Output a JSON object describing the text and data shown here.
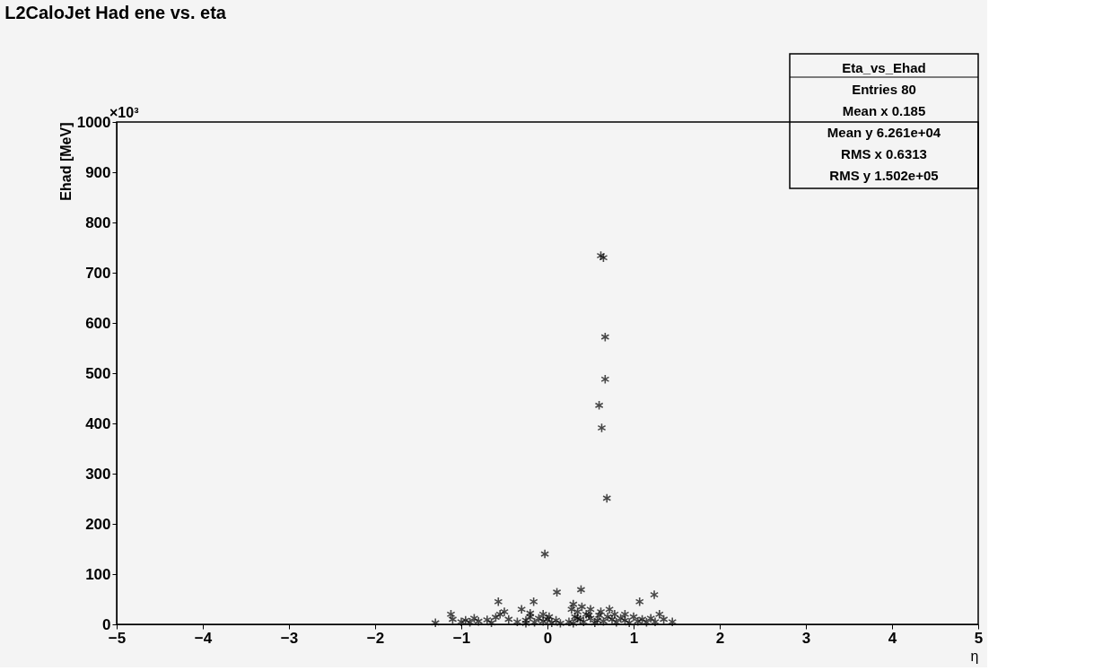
{
  "chart_data": {
    "type": "scatter",
    "title": "L2CaloJet Had ene vs. eta",
    "xlabel": "η",
    "ylabel": "Ehad [MeV]",
    "annotations": [
      "×10³",
      "Eta_vs_Ehad",
      "Entries 80",
      "Mean x 0.185",
      "Mean y 6.261e+04",
      "RMS x 0.6313",
      "RMS y 1.502e+05"
    ],
    "xlim": [
      -5,
      5
    ],
    "xticks": [
      -5,
      -4,
      -3,
      -2,
      -1,
      0,
      1,
      2,
      3,
      4,
      5
    ],
    "ylim": [
      0,
      1000
    ],
    "yticks": [
      0,
      100,
      200,
      300,
      400,
      500,
      600,
      700,
      800,
      900,
      1000
    ],
    "grid": false,
    "marker": "cross",
    "series": [
      {
        "color": "#000000",
        "x": [
          0.62,
          0.65,
          0.67,
          0.67,
          0.6,
          0.63,
          0.69,
          -0.03,
          0.11,
          0.39,
          -0.57,
          -0.16,
          1.07,
          1.24,
          -1.3,
          -1.12,
          -1.1,
          -1.0,
          -0.95,
          -0.85,
          -0.8,
          -0.7,
          -0.6,
          -0.55,
          -0.5,
          -0.45,
          -0.35,
          -0.3,
          -0.25,
          -0.2,
          -0.15,
          -0.1,
          -0.05,
          0.0,
          0.05,
          0.1,
          -0.25,
          -0.05,
          0.25,
          0.28,
          0.3,
          0.32,
          0.35,
          0.38,
          0.4,
          0.42,
          0.45,
          0.5,
          0.55,
          0.58,
          0.6,
          0.62,
          0.65,
          0.7,
          0.72,
          0.75,
          0.8,
          0.85,
          0.9,
          0.95,
          1.0,
          1.05,
          1.1,
          1.15,
          1.2,
          1.25,
          1.3,
          1.35,
          1.45,
          -0.65,
          0.15,
          0.3,
          0.5,
          0.9,
          -0.2,
          0.35,
          0.48,
          -0.9,
          0.02,
          0.78
        ],
        "values": [
          734,
          730,
          572,
          488,
          436,
          391,
          251,
          140,
          64,
          69,
          45,
          45,
          45,
          59,
          3,
          20,
          10,
          5,
          8,
          12,
          6,
          9,
          14,
          20,
          25,
          10,
          5,
          30,
          8,
          15,
          4,
          12,
          6,
          10,
          3,
          8,
          2,
          20,
          5,
          30,
          40,
          15,
          25,
          10,
          35,
          5,
          20,
          12,
          3,
          8,
          18,
          25,
          6,
          15,
          30,
          10,
          4,
          12,
          8,
          3,
          15,
          6,
          10,
          4,
          12,
          5,
          20,
          10,
          5,
          3,
          2,
          2,
          30,
          20,
          22,
          12,
          18,
          4,
          15,
          20
        ]
      }
    ]
  }
}
